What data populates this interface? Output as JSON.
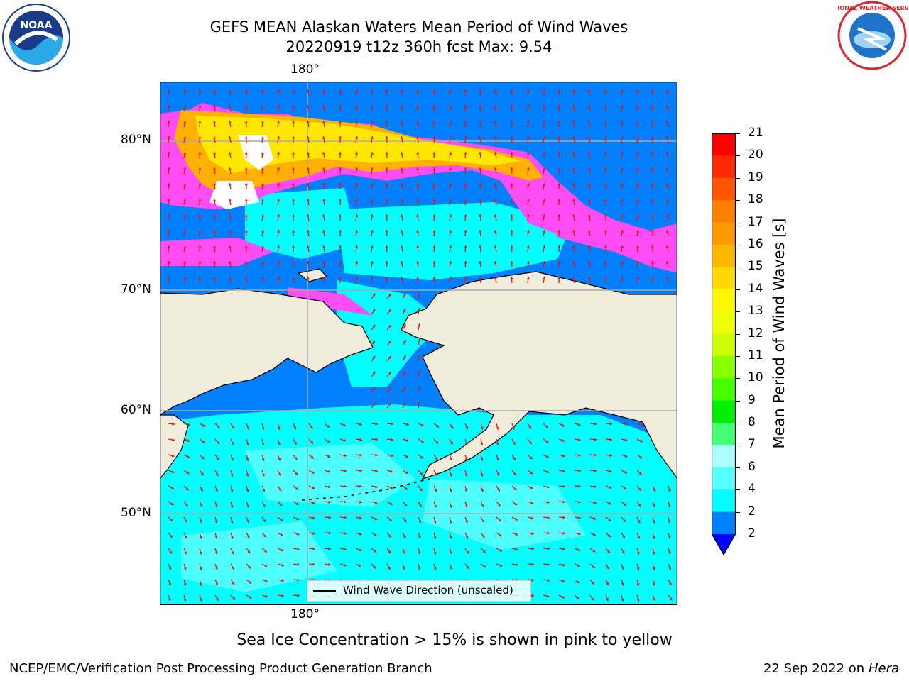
{
  "title_line1": "GEFS MEAN Alaskan Waters Mean Period of Wind Waves",
  "title_line2": "20220919 t12z 360h fcst   Max: 9.54",
  "logos": {
    "left": "NOAA",
    "right": "NATIONAL WEATHER SERVICE"
  },
  "map": {
    "lon_label_top": "180°",
    "lon_label_bottom": "180°",
    "lat_labels": [
      "80°N",
      "70°N",
      "60°N",
      "50°N"
    ],
    "legend_text": "Wind Wave Direction (unscaled)",
    "colors": {
      "land": "#efecdc",
      "ocean_deep": "#007fff",
      "ocean_light": "#00ffff",
      "ocean_lighter": "#4dffff",
      "ice_pink": "#ff4df5",
      "ice_orange": "#ffb000",
      "ice_yellow": "#ffe800",
      "arrow": "#e8180f"
    }
  },
  "colorbar": {
    "label": "Mean Period of Wind Waves [s]",
    "ticks": [
      "21",
      "20",
      "19",
      "18",
      "17",
      "16",
      "15",
      "14",
      "13",
      "12",
      "11",
      "10",
      "9",
      "8",
      "7",
      "6",
      "4",
      "2"
    ],
    "colors": [
      "#ff0000",
      "#ff2a00",
      "#ff5500",
      "#ff7f00",
      "#ff9a00",
      "#ffb800",
      "#ffd800",
      "#fff700",
      "#eeff00",
      "#ccff00",
      "#88ff00",
      "#44ff00",
      "#00ee00",
      "#44ff77",
      "#aaffff",
      "#55ffff",
      "#00ffff",
      "#007fff"
    ],
    "under_color": "#0000ff"
  },
  "note": "Sea Ice Concentration > 15% is shown in pink to yellow",
  "footer_left": "NCEP/EMC/Verification Post Processing Product Generation Branch",
  "footer_right_date": "22 Sep 2022 on",
  "footer_right_host": "Hera"
}
